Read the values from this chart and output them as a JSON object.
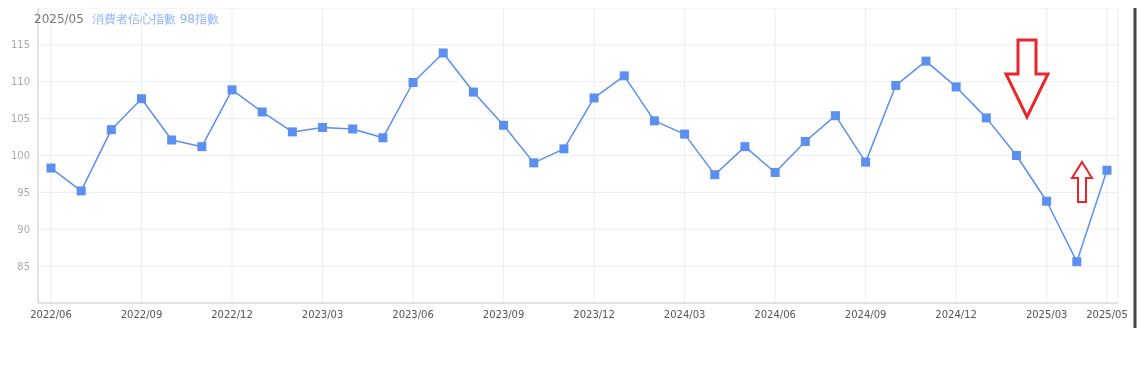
{
  "chart_data": {
    "type": "line",
    "title": "2025/05",
    "subtitle": "消費者信心指數 98指數",
    "categories": [
      "2022/06",
      null,
      null,
      "2022/09",
      null,
      null,
      "2022/12",
      null,
      null,
      "2023/03",
      null,
      null,
      "2023/06",
      null,
      null,
      "2023/09",
      null,
      null,
      "2023/12",
      null,
      null,
      "2024/03",
      null,
      null,
      "2024/06",
      null,
      null,
      "2024/09",
      null,
      null,
      "2024/12",
      null,
      null,
      "2025/03",
      null,
      "2025/05"
    ],
    "series": [
      {
        "color": "#5b8ff0",
        "values": [
          98.3,
          95.2,
          103.5,
          107.7,
          102.1,
          101.2,
          108.9,
          105.9,
          103.2,
          103.8,
          103.6,
          102.4,
          109.9,
          113.9,
          108.6,
          104.1,
          99.0,
          100.9,
          107.8,
          110.8,
          104.7,
          102.9,
          97.4,
          101.2,
          97.7,
          101.9,
          105.4,
          99.1,
          109.5,
          112.8,
          109.3,
          105.1,
          100.0,
          93.8,
          85.6,
          98
        ]
      }
    ],
    "ylim": [
      80,
      120
    ],
    "yticks": [
      85,
      90,
      95,
      100,
      105,
      110,
      115
    ],
    "grid": true,
    "marker": "square",
    "line_style": "solid",
    "legend": false
  }
}
